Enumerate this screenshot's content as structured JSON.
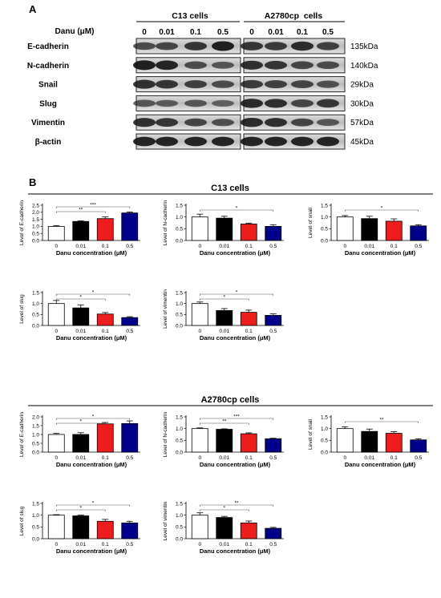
{
  "panel_a_label": "A",
  "panel_b_label": "B",
  "western_blot": {
    "groups": [
      "C13 cells",
      "A2780cp  cells"
    ],
    "dose_label": "Danu (μM)",
    "doses": [
      "0",
      "0.01",
      "0.1",
      "0.5"
    ],
    "proteins": [
      {
        "name": "E-cadherin",
        "size": "135kDa"
      },
      {
        "name": "N-cadherin",
        "size": "140kDa"
      },
      {
        "name": "Snail",
        "size": "29kDa"
      },
      {
        "name": "Slug",
        "size": "30kDa"
      },
      {
        "name": "Vimentin",
        "size": "57kDa"
      },
      {
        "name": "β-actin",
        "size": "45kDa"
      }
    ]
  },
  "sections": [
    "C13 cells",
    "A2780cp cells"
  ],
  "colors": {
    "d0": "#ffffff",
    "d001": "#000000",
    "d01": "#ee1c1c",
    "d05": "#00008b"
  },
  "chart_data": [
    {
      "type": "bar",
      "section": "C13 cells",
      "categories": [
        "0",
        "0.01",
        "0.1",
        "0.5"
      ],
      "values": [
        1.0,
        1.35,
        1.55,
        1.95
      ],
      "errors": [
        0.06,
        0.04,
        0.12,
        0.07
      ],
      "ylabel": "Level of E-cadherin",
      "xlabel": "Danu concentration (μM)",
      "ylim": [
        0,
        2.5
      ],
      "yticks": [
        "0.0",
        "0.5",
        "1.0",
        "1.5",
        "2.0",
        "2.5"
      ],
      "significance": [
        {
          "from": 0,
          "to": 2,
          "label": "**"
        },
        {
          "from": 0,
          "to": 3,
          "label": "***"
        }
      ]
    },
    {
      "type": "bar",
      "section": "C13 cells",
      "categories": [
        "0",
        "0.01",
        "0.1",
        "0.5"
      ],
      "values": [
        1.0,
        0.95,
        0.7,
        0.6
      ],
      "errors": [
        0.12,
        0.08,
        0.04,
        0.07
      ],
      "ylabel": "Level of N-cadherin",
      "xlabel": "Danu concentration (μM)",
      "ylim": [
        0,
        1.5
      ],
      "yticks": [
        "0.0",
        "0.5",
        "1.0",
        "1.5"
      ],
      "significance": [
        {
          "from": 0,
          "to": 3,
          "label": "*"
        }
      ]
    },
    {
      "type": "bar",
      "section": "C13 cells",
      "categories": [
        "0",
        "0.01",
        "0.1",
        "0.5"
      ],
      "values": [
        1.0,
        0.93,
        0.82,
        0.62
      ],
      "errors": [
        0.06,
        0.1,
        0.1,
        0.05
      ],
      "ylabel": "Level of snail",
      "xlabel": "Danu concentration (μM)",
      "ylim": [
        0,
        1.5
      ],
      "yticks": [
        "0.0",
        "0.5",
        "1.0",
        "1.5"
      ],
      "significance": [
        {
          "from": 0,
          "to": 3,
          "label": "*"
        }
      ]
    },
    {
      "type": "bar",
      "section": "C13 cells",
      "categories": [
        "0",
        "0.01",
        "0.1",
        "0.5"
      ],
      "values": [
        1.0,
        0.8,
        0.52,
        0.36
      ],
      "errors": [
        0.14,
        0.14,
        0.07,
        0.04
      ],
      "ylabel": "Level of slug",
      "xlabel": "Danu concentration (μM)",
      "ylim": [
        0,
        1.5
      ],
      "yticks": [
        "0.0",
        "0.5",
        "1.0",
        "1.5"
      ],
      "significance": [
        {
          "from": 0,
          "to": 2,
          "label": "*"
        },
        {
          "from": 0,
          "to": 3,
          "label": "*"
        }
      ]
    },
    {
      "type": "bar",
      "section": "C13 cells",
      "categories": [
        "0",
        "0.01",
        "0.1",
        "0.5"
      ],
      "values": [
        1.0,
        0.68,
        0.6,
        0.46
      ],
      "errors": [
        0.07,
        0.09,
        0.1,
        0.07
      ],
      "ylabel": "Level of vimentin",
      "xlabel": "Danu concentration (μM)",
      "ylim": [
        0,
        1.5
      ],
      "yticks": [
        "0.0",
        "0.5",
        "1.0",
        "1.5"
      ],
      "significance": [
        {
          "from": 0,
          "to": 2,
          "label": "*"
        },
        {
          "from": 0,
          "to": 3,
          "label": "*"
        }
      ]
    },
    {
      "type": "bar",
      "section": "A2780cp cells",
      "categories": [
        "0",
        "0.01",
        "0.1",
        "0.5"
      ],
      "values": [
        1.0,
        1.0,
        1.6,
        1.62
      ],
      "errors": [
        0.06,
        0.1,
        0.08,
        0.15
      ],
      "ylabel": "Level of E-cadherin",
      "xlabel": "Danu concentration (μM)",
      "ylim": [
        0,
        2.0
      ],
      "yticks": [
        "0.0",
        "0.5",
        "1.0",
        "1.5",
        "2.0"
      ],
      "significance": [
        {
          "from": 0,
          "to": 2,
          "label": "*"
        },
        {
          "from": 0,
          "to": 3,
          "label": "*"
        }
      ]
    },
    {
      "type": "bar",
      "section": "A2780cp cells",
      "categories": [
        "0",
        "0.01",
        "0.1",
        "0.5"
      ],
      "values": [
        1.0,
        0.97,
        0.78,
        0.57
      ],
      "errors": [
        0.03,
        0.02,
        0.04,
        0.02
      ],
      "ylabel": "Level of N-cadherin",
      "xlabel": "Danu concentration (μM)",
      "ylim": [
        0,
        1.5
      ],
      "yticks": [
        "0.0",
        "0.5",
        "1.0",
        "1.5"
      ],
      "significance": [
        {
          "from": 0,
          "to": 2,
          "label": "**"
        },
        {
          "from": 0,
          "to": 3,
          "label": "***"
        }
      ]
    },
    {
      "type": "bar",
      "section": "A2780cp cells",
      "categories": [
        "0",
        "0.01",
        "0.1",
        "0.5"
      ],
      "values": [
        1.0,
        0.88,
        0.8,
        0.52
      ],
      "errors": [
        0.07,
        0.1,
        0.07,
        0.05
      ],
      "ylabel": "Level of snail",
      "xlabel": "Danu concentration (μM)",
      "ylim": [
        0,
        1.5
      ],
      "yticks": [
        "0.0",
        "0.5",
        "1.0",
        "1.5"
      ],
      "significance": [
        {
          "from": 0,
          "to": 3,
          "label": "**"
        }
      ]
    },
    {
      "type": "bar",
      "section": "A2780cp cells",
      "categories": [
        "0",
        "0.01",
        "0.1",
        "0.5"
      ],
      "values": [
        1.0,
        0.97,
        0.74,
        0.67
      ],
      "errors": [
        0.02,
        0.03,
        0.08,
        0.07
      ],
      "ylabel": "Level of slug",
      "xlabel": "Danu concentration (μM)",
      "ylim": [
        0,
        1.5
      ],
      "yticks": [
        "0.0",
        "0.5",
        "1.0",
        "1.5"
      ],
      "significance": [
        {
          "from": 0,
          "to": 2,
          "label": "*"
        },
        {
          "from": 0,
          "to": 3,
          "label": "*"
        }
      ]
    },
    {
      "type": "bar",
      "section": "A2780cp cells",
      "categories": [
        "0",
        "0.01",
        "0.1",
        "0.5"
      ],
      "values": [
        1.0,
        0.9,
        0.67,
        0.44
      ],
      "errors": [
        0.1,
        0.05,
        0.08,
        0.04
      ],
      "ylabel": "Level of vimentin",
      "xlabel": "Danu concentration (μM)",
      "ylim": [
        0,
        1.5
      ],
      "yticks": [
        "0.0",
        "0.5",
        "1.0",
        "1.5"
      ],
      "significance": [
        {
          "from": 0,
          "to": 2,
          "label": "*"
        },
        {
          "from": 0,
          "to": 3,
          "label": "**"
        }
      ]
    }
  ]
}
